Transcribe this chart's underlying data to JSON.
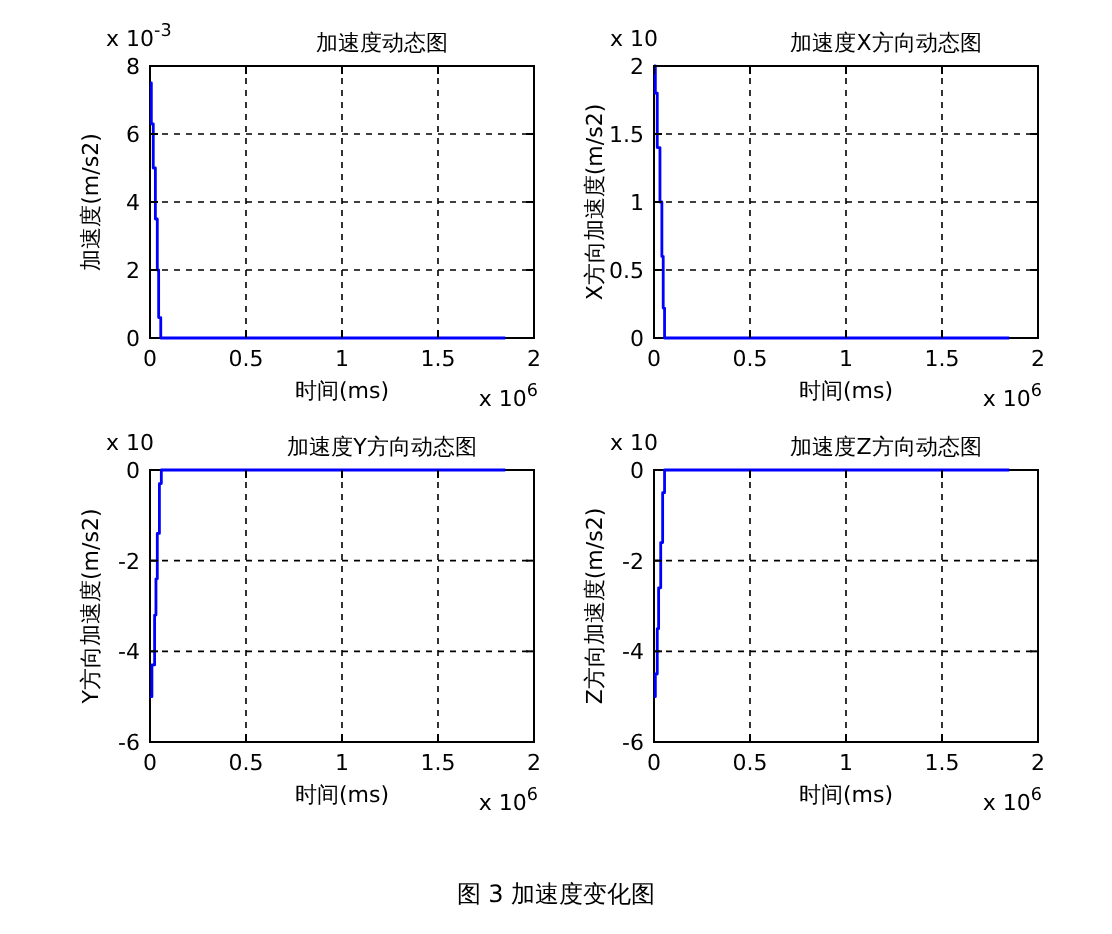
{
  "chart_data": [
    {
      "type": "step",
      "title": "加速度动态图",
      "xlabel": "时间(ms)",
      "ylabel": "加速度(m/s2)",
      "x": [
        0,
        0.007,
        0.017,
        0.028,
        0.038,
        0.045,
        0.056,
        1.85
      ],
      "series": [
        {
          "color": "#0000ff",
          "values": [
            7.5,
            6.3,
            5,
            3.5,
            2,
            0.6,
            0,
            0
          ]
        }
      ],
      "xlim": [
        0,
        2
      ],
      "xticks": [
        0,
        0.5,
        1,
        1.5,
        2
      ],
      "ylim": [
        0,
        8
      ],
      "yticks": [
        0,
        2,
        4,
        6,
        8
      ],
      "grid": true,
      "annotations": [
        "x 10$^{-3}$",
        "x 10$^{6}$"
      ]
    },
    {
      "type": "step",
      "title": "加速度X方向动态图",
      "xlabel": "时间(ms)",
      "ylabel": "X方向加速度(m/s2)",
      "x": [
        0,
        0.007,
        0.017,
        0.031,
        0.041,
        0.048,
        0.055,
        1.85
      ],
      "series": [
        {
          "color": "#0000ff",
          "values": [
            2,
            1.8,
            1.4,
            1.0,
            0.6,
            0.22,
            0,
            0
          ]
        }
      ],
      "xlim": [
        0,
        2
      ],
      "xticks": [
        0,
        0.5,
        1,
        1.5,
        2
      ],
      "ylim": [
        0,
        2
      ],
      "yticks": [
        0,
        0.5,
        1,
        1.5,
        2
      ],
      "grid": true,
      "annotations": [
        "x 10",
        "x 10$^{6}$"
      ]
    },
    {
      "type": "step",
      "title": "加速度Y方向动态图",
      "xlabel": "时间(ms)",
      "ylabel": "Y方向加速度(m/s2)",
      "x": [
        0,
        0.01,
        0.024,
        0.031,
        0.038,
        0.049,
        0.059,
        1.85
      ],
      "series": [
        {
          "color": "#0000ff",
          "values": [
            -5,
            -4.3,
            -3.2,
            -2.4,
            -1.4,
            -0.3,
            0,
            0
          ]
        }
      ],
      "xlim": [
        0,
        2
      ],
      "xticks": [
        0,
        0.5,
        1,
        1.5,
        2
      ],
      "ylim": [
        -6,
        0
      ],
      "yticks": [
        -6,
        -4,
        -2,
        0
      ],
      "grid": true,
      "annotations": [
        "x 10",
        "x 10$^{6}$"
      ]
    },
    {
      "type": "step",
      "title": "加速度Z方向动态图",
      "xlabel": "时间(ms)",
      "ylabel": "Z方向加速度(m/s2)",
      "x": [
        0,
        0.007,
        0.017,
        0.024,
        0.035,
        0.045,
        0.055,
        1.85
      ],
      "series": [
        {
          "color": "#0000ff",
          "values": [
            -5,
            -4.5,
            -3.5,
            -2.6,
            -1.6,
            -0.5,
            0,
            0
          ]
        }
      ],
      "xlim": [
        0,
        2
      ],
      "xticks": [
        0,
        0.5,
        1,
        1.5,
        2
      ],
      "ylim": [
        -6,
        0
      ],
      "yticks": [
        -6,
        -4,
        -2,
        0
      ],
      "grid": true,
      "annotations": [
        "x 10",
        "x 10$^{6}$",
        "图 3  加速度变化图"
      ]
    }
  ]
}
